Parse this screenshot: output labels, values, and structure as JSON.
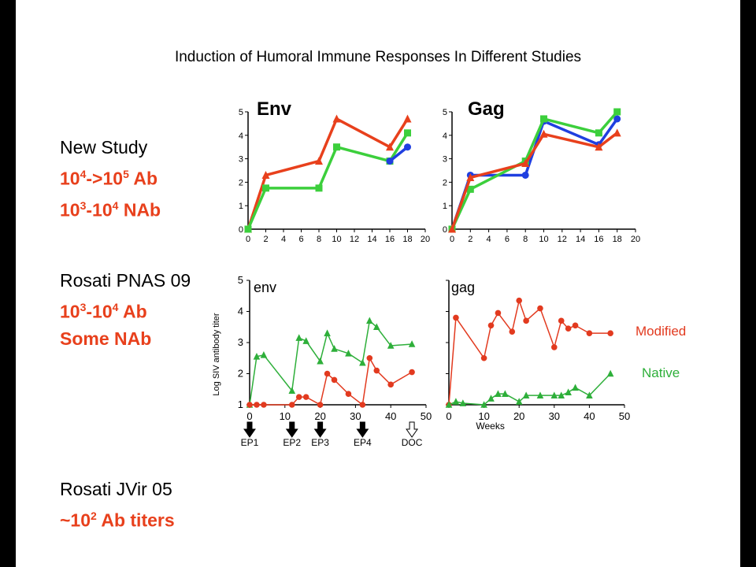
{
  "title": "Induction of Humoral Immune Responses In Different Studies",
  "studies": {
    "new": {
      "name": "New Study",
      "line1_a": "10",
      "line1_a_exp": "4",
      "line1_b": "->10",
      "line1_b_exp": "5",
      "line1_c": " Ab",
      "line2_a": "10",
      "line2_a_exp": "3",
      "line2_b": "-10",
      "line2_b_exp": "4",
      "line2_c": " NAb"
    },
    "pnas": {
      "name": "Rosati PNAS 09",
      "line1_a": "10",
      "line1_a_exp": "3",
      "line1_b": "-10",
      "line1_b_exp": "4",
      "line1_c": " Ab",
      "line2": "Some NAb"
    },
    "jvir": {
      "name": "Rosati JVir 05",
      "line1_a": "~10",
      "line1_a_exp": "2",
      "line1_c": " Ab titers"
    }
  },
  "colors": {
    "red": "#e8401c",
    "green": "#3ccf3c",
    "blue": "#1f3fe0",
    "pnas_red": "#e23a1f",
    "pnas_green": "#2eaf3a"
  },
  "chart_data": [
    {
      "type": "line",
      "title": "Env",
      "xlim": [
        0,
        20
      ],
      "ylim": [
        0,
        5
      ],
      "xticks": [
        0,
        2,
        4,
        6,
        8,
        10,
        12,
        14,
        16,
        18,
        20
      ],
      "yticks": [
        0,
        1,
        2,
        3,
        4,
        5
      ],
      "series": [
        {
          "color": "red",
          "marker": "triangle",
          "x": [
            0,
            2,
            8,
            10,
            16,
            18
          ],
          "y": [
            0,
            2.3,
            2.9,
            4.7,
            3.5,
            4.7
          ]
        },
        {
          "color": "green",
          "marker": "square",
          "x": [
            0,
            2,
            8,
            10,
            16,
            18
          ],
          "y": [
            0,
            1.75,
            1.75,
            3.5,
            2.9,
            4.1
          ]
        },
        {
          "color": "blue",
          "marker": "circle",
          "x": [
            16,
            18
          ],
          "y": [
            2.9,
            3.5
          ]
        }
      ]
    },
    {
      "type": "line",
      "title": "Gag",
      "xlim": [
        0,
        20
      ],
      "ylim": [
        0,
        5
      ],
      "xticks": [
        0,
        2,
        4,
        6,
        8,
        10,
        12,
        14,
        16,
        18,
        20
      ],
      "yticks": [
        0,
        1,
        2,
        3,
        4,
        5
      ],
      "series": [
        {
          "color": "blue",
          "marker": "circle",
          "x": [
            0,
            2,
            8,
            10,
            16,
            18
          ],
          "y": [
            0,
            2.3,
            2.3,
            4.6,
            3.6,
            4.7
          ]
        },
        {
          "color": "green",
          "marker": "square",
          "x": [
            0,
            2,
            8,
            10,
            16,
            18
          ],
          "y": [
            0,
            1.7,
            2.9,
            4.7,
            4.1,
            5.0
          ]
        },
        {
          "color": "red",
          "marker": "triangle",
          "x": [
            0,
            2,
            8,
            10,
            16,
            18
          ],
          "y": [
            0,
            2.2,
            2.8,
            4.05,
            3.5,
            4.1
          ]
        }
      ]
    },
    {
      "type": "line",
      "title": "env",
      "ylabel": "Log  SIV antibody titer",
      "xlim": [
        0,
        50
      ],
      "ylim": [
        1,
        5
      ],
      "xticks": [
        0,
        10,
        20,
        30,
        40,
        50
      ],
      "yticks": [
        1,
        2,
        3,
        4,
        5
      ],
      "markers": [
        {
          "label": "EP1",
          "x": 0,
          "filled": true
        },
        {
          "label": "EP2",
          "x": 12,
          "filled": true
        },
        {
          "label": "EP3",
          "x": 20,
          "filled": true
        },
        {
          "label": "EP4",
          "x": 32,
          "filled": true
        },
        {
          "label": "DOC",
          "x": 46,
          "filled": false
        }
      ],
      "series": [
        {
          "name": "Native",
          "color": "pnas_green",
          "marker": "triangle",
          "x": [
            0,
            2,
            4,
            12,
            14,
            16,
            20,
            22,
            24,
            28,
            32,
            34,
            36,
            40,
            46
          ],
          "y": [
            1,
            2.55,
            2.6,
            1.45,
            3.15,
            3.05,
            2.4,
            3.3,
            2.8,
            2.65,
            2.35,
            3.7,
            3.5,
            2.9,
            2.95
          ]
        },
        {
          "name": "Modified",
          "color": "pnas_red",
          "marker": "circle",
          "x": [
            0,
            2,
            4,
            12,
            14,
            16,
            20,
            22,
            24,
            28,
            32,
            34,
            36,
            40,
            46
          ],
          "y": [
            1,
            1,
            1,
            1,
            1.25,
            1.25,
            1,
            2,
            1.8,
            1.35,
            1,
            2.5,
            2.1,
            1.65,
            2.05
          ]
        }
      ]
    },
    {
      "type": "line",
      "title": "gag",
      "xlabel": "Weeks",
      "xlim": [
        0,
        50
      ],
      "ylim": [
        1,
        5
      ],
      "xticks": [
        0,
        10,
        20,
        30,
        40,
        50
      ],
      "yticks": [
        1,
        2,
        3,
        4,
        5
      ],
      "legend": [
        {
          "name": "Modified",
          "color": "pnas_red"
        },
        {
          "name": "Native",
          "color": "pnas_green"
        }
      ],
      "series": [
        {
          "name": "Modified",
          "color": "pnas_red",
          "marker": "circle",
          "x": [
            0,
            2,
            10,
            12,
            14,
            18,
            20,
            22,
            26,
            30,
            32,
            34,
            36,
            40,
            46
          ],
          "y": [
            1,
            3.8,
            2.5,
            3.55,
            3.95,
            3.35,
            4.35,
            3.7,
            4.1,
            2.85,
            3.7,
            3.45,
            3.55,
            3.3,
            3.3
          ]
        },
        {
          "name": "Native",
          "color": "pnas_green",
          "marker": "triangle",
          "x": [
            0,
            2,
            4,
            10,
            12,
            14,
            16,
            20,
            22,
            26,
            30,
            32,
            34,
            36,
            40,
            46
          ],
          "y": [
            1,
            1.1,
            1.05,
            1.0,
            1.2,
            1.35,
            1.35,
            1.1,
            1.3,
            1.3,
            1.3,
            1.3,
            1.4,
            1.55,
            1.3,
            2.0
          ]
        }
      ]
    }
  ]
}
